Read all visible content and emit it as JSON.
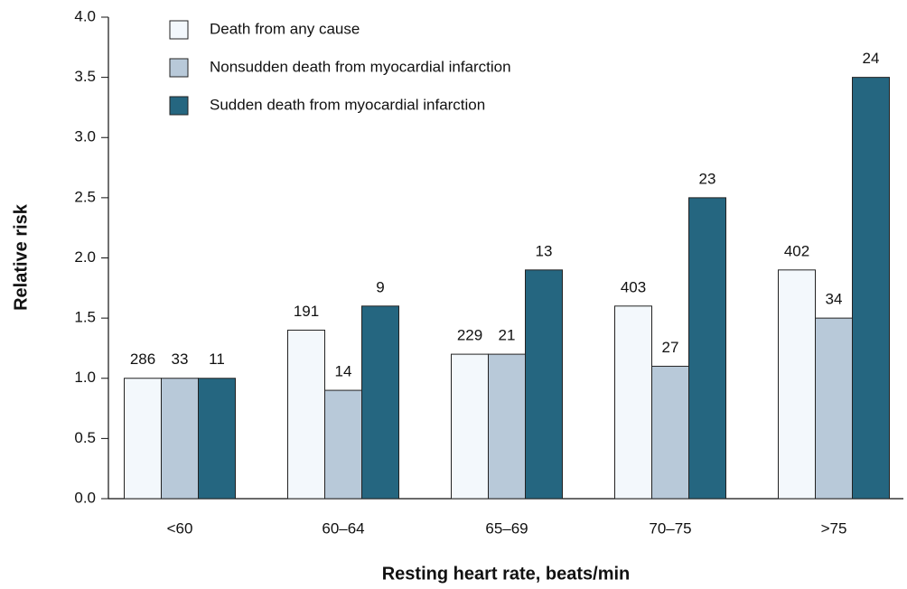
{
  "chart_data": {
    "type": "bar",
    "x_label": "Resting heart rate, beats/min",
    "y_label": "Relative risk",
    "categories": [
      "<60",
      "60–64",
      "65–69",
      "70–75",
      ">75"
    ],
    "series": [
      {
        "name": "Death from any cause",
        "color": "#f3f8fc",
        "values": [
          1.0,
          1.4,
          1.2,
          1.6,
          1.9
        ],
        "counts": [
          286,
          191,
          229,
          403,
          402
        ]
      },
      {
        "name": "Nonsudden death from myocardial infarction",
        "color": "#b8c9d9",
        "values": [
          1.0,
          0.9,
          1.2,
          1.1,
          1.5
        ],
        "counts": [
          33,
          14,
          21,
          27,
          34
        ]
      },
      {
        "name": "Sudden death from myocardial infarction",
        "color": "#256680",
        "values": [
          1.0,
          1.6,
          1.9,
          2.5,
          3.5
        ],
        "counts": [
          11,
          9,
          13,
          23,
          24
        ]
      }
    ],
    "ylim": [
      0,
      4
    ],
    "yticks": [
      {
        "value": 0,
        "label": "0.0"
      },
      {
        "value": 0.5,
        "label": "0.5"
      },
      {
        "value": 1,
        "label": "1.0"
      },
      {
        "value": 1.5,
        "label": "1.5"
      },
      {
        "value": 2,
        "label": "2.0"
      },
      {
        "value": 2.5,
        "label": "2.5"
      },
      {
        "value": 3,
        "label": "3.0"
      },
      {
        "value": 3.5,
        "label": "3.5"
      },
      {
        "value": 4,
        "label": "4.0"
      }
    ],
    "legend": "upper left",
    "grid": false
  }
}
